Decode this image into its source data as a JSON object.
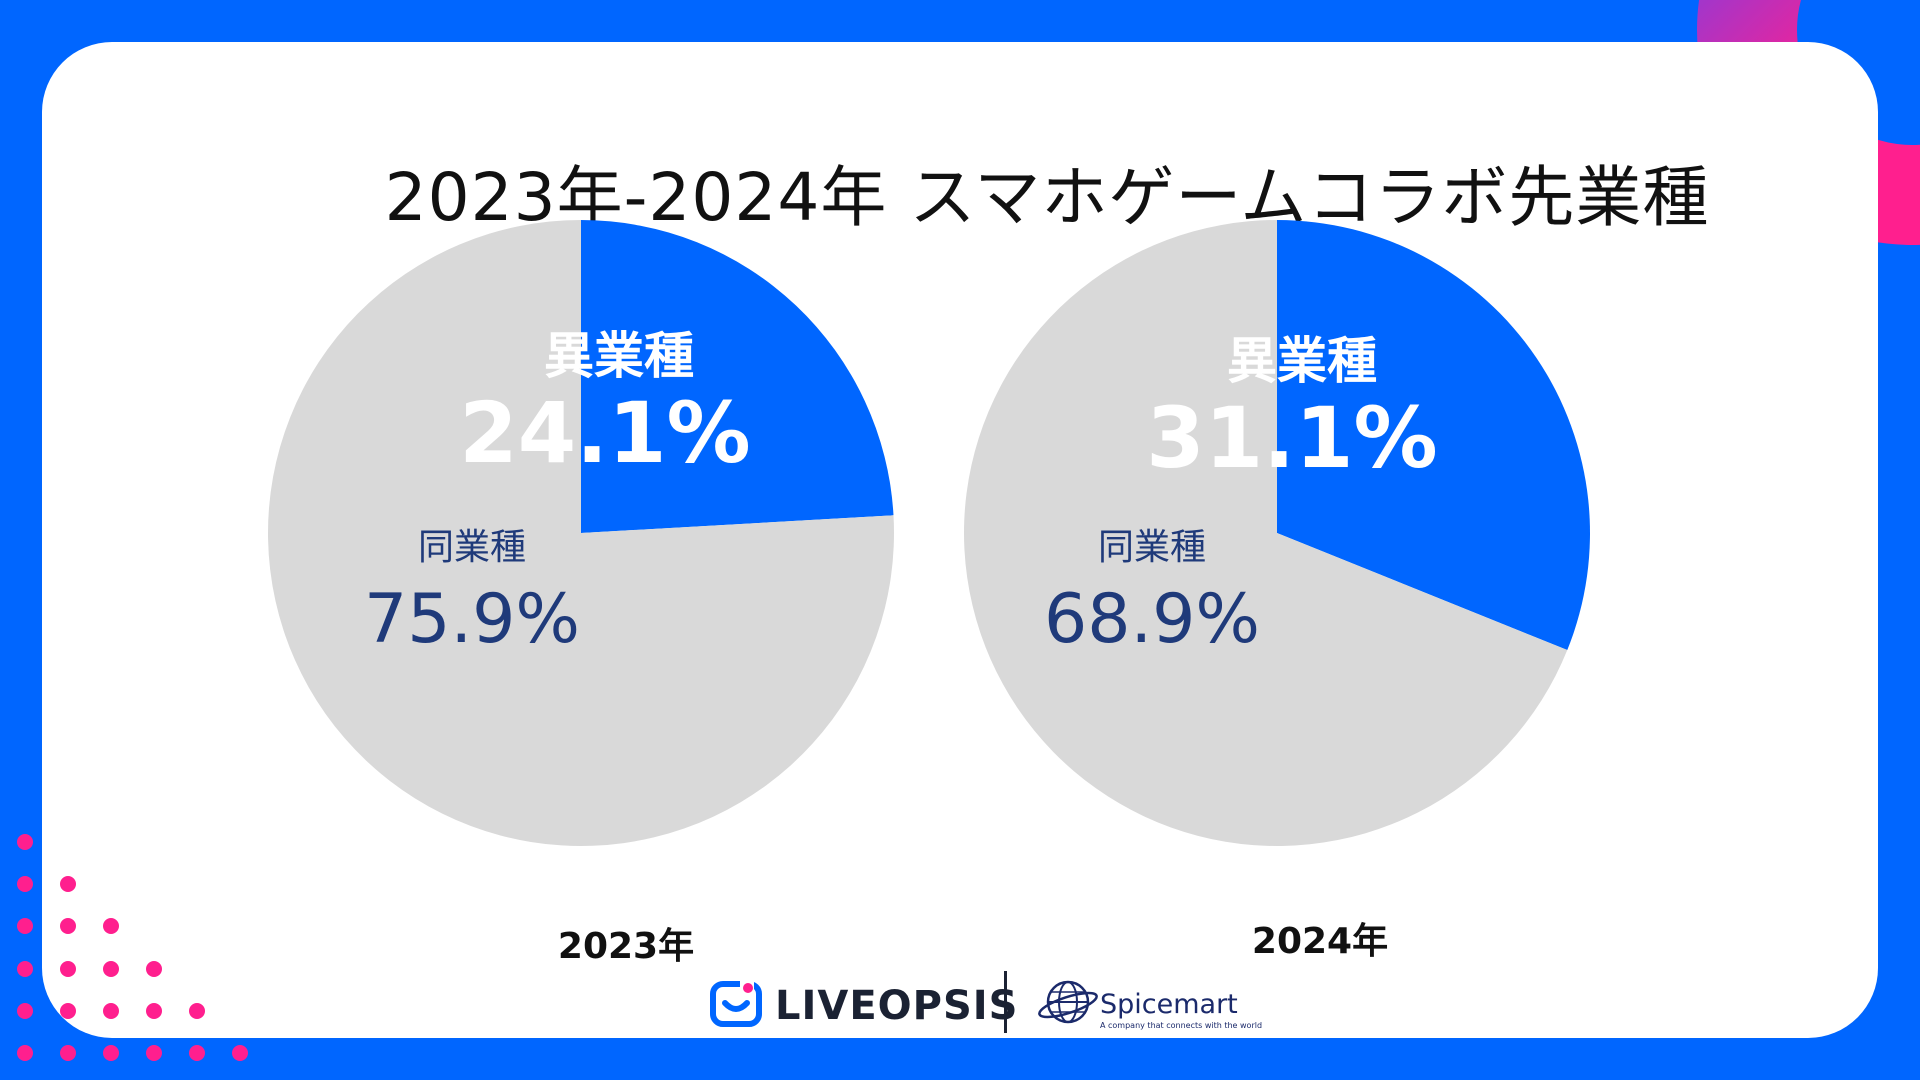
{
  "colors": {
    "background": "#0066ff",
    "panel": "#ffffff",
    "highlight_slice": "#0066ff",
    "other_slice": "#d9d9d9",
    "highlight_text": "#ffffff",
    "other_text": "#1f3a7a",
    "accent_ring": "#ff1f8e",
    "dots": "#ff1f8e"
  },
  "chart_data": [
    {
      "type": "pie",
      "title": "2023年-2024年 スマホゲームコラボ先業種",
      "caption": "2023年",
      "slices": [
        {
          "label": "異業種",
          "value": 24.1,
          "display": "24.1%"
        },
        {
          "label": "同業種",
          "value": 75.9,
          "display": "75.9%"
        }
      ]
    },
    {
      "type": "pie",
      "title": "2023年-2024年 スマホゲームコラボ先業種",
      "caption": "2024年",
      "slices": [
        {
          "label": "異業種",
          "value": 31.1,
          "display": "31.1%"
        },
        {
          "label": "同業種",
          "value": 68.9,
          "display": "68.9%"
        }
      ]
    }
  ],
  "header": {
    "title": "2023年-2024年 スマホゲームコラボ先業種"
  },
  "footer": {
    "logo_primary": "LIVEOPSIS",
    "logo_secondary": "Spicemart",
    "logo_secondary_tagline": "A company that connects with the world",
    "icons": [
      "liveopsis-logo-icon",
      "spicemart-globe-icon"
    ]
  }
}
